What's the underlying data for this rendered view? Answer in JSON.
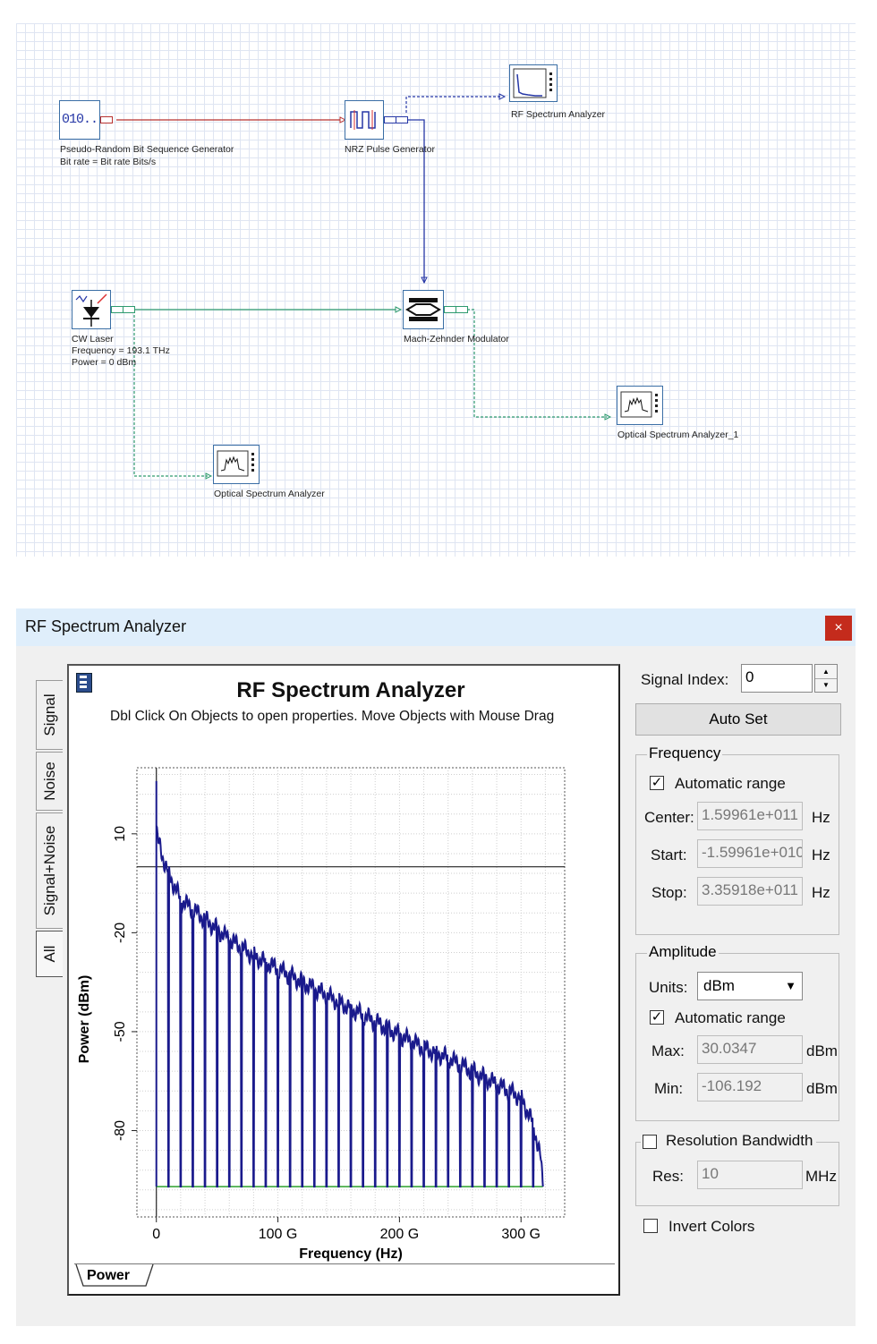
{
  "schematic": {
    "components": {
      "prbs": {
        "name": "Pseudo-Random Bit Sequence Generator",
        "param": "Bit rate = Bit rate  Bits/s",
        "icon_text": "010.."
      },
      "nrz": {
        "name": "NRZ Pulse Generator"
      },
      "rf_analyzer": {
        "name": "RF Spectrum Analyzer"
      },
      "cw_laser": {
        "name": "CW Laser",
        "param1": "Frequency = 193.1  THz",
        "param2": "Power = 0  dBm"
      },
      "mzm": {
        "name": "Mach-Zehnder Modulator"
      },
      "osa": {
        "name": "Optical Spectrum Analyzer"
      },
      "osa1": {
        "name": "Optical Spectrum Analyzer_1"
      }
    }
  },
  "window": {
    "title": "RF Spectrum Analyzer",
    "close_glyph": "×",
    "tabs": [
      "Signal",
      "Noise",
      "Signal+Noise",
      "All"
    ],
    "plot": {
      "title": "RF Spectrum Analyzer",
      "subtitle": "Dbl Click On Objects to open properties.  Move Objects with Mouse Drag",
      "bottom_tab": "Power"
    },
    "controls": {
      "signal_index_label": "Signal Index:",
      "signal_index_value": "0",
      "auto_set": "Auto Set",
      "frequency": {
        "group": "Frequency",
        "auto_range_label": "Automatic range",
        "auto_range_checked": true,
        "center_label": "Center:",
        "center_value": "1.59961e+011",
        "center_unit": "Hz",
        "start_label": "Start:",
        "start_value": "-1.59961e+010",
        "start_unit": "Hz",
        "stop_label": "Stop:",
        "stop_value": "3.35918e+011",
        "stop_unit": "Hz"
      },
      "amplitude": {
        "group": "Amplitude",
        "units_label": "Units:",
        "units_value": "dBm",
        "auto_range_label": "Automatic range",
        "auto_range_checked": true,
        "max_label": "Max:",
        "max_value": "30.0347",
        "max_unit": "dBm",
        "min_label": "Min:",
        "min_value": "-106.192",
        "min_unit": "dBm"
      },
      "resolution": {
        "label": "Resolution Bandwidth",
        "checked": false,
        "res_label": "Res:",
        "res_value": "10",
        "res_unit": "MHz"
      },
      "invert_colors": {
        "label": "Invert Colors",
        "checked": false
      }
    }
  },
  "chart_data": {
    "type": "line",
    "xlabel": "Frequency (Hz)",
    "ylabel": "Power (dBm)",
    "x_unit": "Hz",
    "xlim": [
      -15996100000.0,
      335918000000.0
    ],
    "ylim": [
      -106.192,
      30.0347
    ],
    "x_ticks": [
      {
        "value": 0,
        "label": "0"
      },
      {
        "value": 100000000000.0,
        "label": "100 G"
      },
      {
        "value": 200000000000.0,
        "label": "200 G"
      },
      {
        "value": 300000000000.0,
        "label": "300 G"
      }
    ],
    "y_ticks": [
      10,
      -20,
      -50,
      -80
    ],
    "grid": true,
    "horizontal_reference_dBm": 0,
    "noise_floor_dBm": -97,
    "series": [
      {
        "color": "#1a1a8c",
        "envelope_x_GHz": [
          0,
          1,
          3,
          6,
          10,
          20,
          40,
          60,
          80,
          100,
          120,
          140,
          160,
          180,
          200,
          220,
          240,
          260,
          280,
          300,
          310,
          316,
          318
        ],
        "envelope_dBm": [
          12,
          8,
          6,
          2,
          -2,
          -10,
          -16,
          -22,
          -27,
          -31,
          -35,
          -39,
          -43,
          -47,
          -51,
          -55,
          -58,
          -62,
          -66,
          -70,
          -78,
          -88,
          -97
        ],
        "null_spacing_GHz": 10
      }
    ],
    "floor_color": "#2ca02c"
  }
}
